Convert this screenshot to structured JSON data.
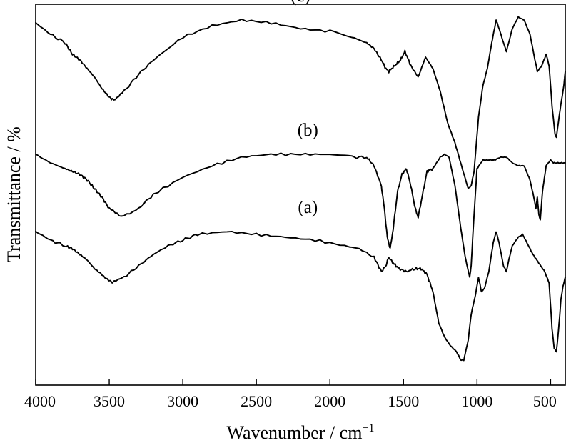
{
  "chart_data": {
    "type": "line",
    "xlabel": "Wavenumber / cm",
    "xlabel_superscript": "−1",
    "ylabel": "Transmittance / %",
    "xlim": [
      4000,
      400
    ],
    "x_reversed": true,
    "x_ticks": [
      4000,
      3500,
      3000,
      2500,
      2000,
      1500,
      1000,
      500
    ],
    "y_ticks_shown": false,
    "grid": false,
    "y_units": "relative transmittance (offset stacked, 0–100 vertical scale, 0 = top of plot)",
    "series": [
      {
        "name": "(c)",
        "points": [
          [
            4000,
            3
          ],
          [
            3900,
            7
          ],
          [
            3800,
            10
          ],
          [
            3750,
            14
          ],
          [
            3700,
            16
          ],
          [
            3650,
            19
          ],
          [
            3600,
            22
          ],
          [
            3550,
            26
          ],
          [
            3500,
            29
          ],
          [
            3470,
            30
          ],
          [
            3400,
            27
          ],
          [
            3300,
            21
          ],
          [
            3200,
            16
          ],
          [
            3000,
            8
          ],
          [
            2800,
            4
          ],
          [
            2600,
            2
          ],
          [
            2400,
            3
          ],
          [
            2200,
            5
          ],
          [
            2000,
            6
          ],
          [
            1850,
            8
          ],
          [
            1750,
            10
          ],
          [
            1700,
            12
          ],
          [
            1650,
            16
          ],
          [
            1620,
            19
          ],
          [
            1600,
            20
          ],
          [
            1560,
            18
          ],
          [
            1520,
            16
          ],
          [
            1490,
            13
          ],
          [
            1450,
            18
          ],
          [
            1400,
            22
          ],
          [
            1350,
            15
          ],
          [
            1300,
            19
          ],
          [
            1250,
            27
          ],
          [
            1200,
            38
          ],
          [
            1150,
            45
          ],
          [
            1100,
            54
          ],
          [
            1060,
            61
          ],
          [
            1040,
            60
          ],
          [
            1020,
            55
          ],
          [
            990,
            36
          ],
          [
            960,
            25
          ],
          [
            930,
            19
          ],
          [
            900,
            10
          ],
          [
            870,
            2
          ],
          [
            850,
            5
          ],
          [
            820,
            10
          ],
          [
            800,
            13
          ],
          [
            760,
            5
          ],
          [
            720,
            1
          ],
          [
            680,
            2
          ],
          [
            640,
            7
          ],
          [
            610,
            15
          ],
          [
            590,
            20
          ],
          [
            560,
            18
          ],
          [
            530,
            14
          ],
          [
            510,
            18
          ],
          [
            490,
            32
          ],
          [
            470,
            42
          ],
          [
            460,
            43
          ],
          [
            440,
            35
          ],
          [
            410,
            25
          ],
          [
            400,
            20
          ]
        ]
      },
      {
        "name": "(b)",
        "points": [
          [
            4000,
            49
          ],
          [
            3900,
            52
          ],
          [
            3800,
            54
          ],
          [
            3750,
            55
          ],
          [
            3700,
            56
          ],
          [
            3650,
            58
          ],
          [
            3600,
            61
          ],
          [
            3550,
            64
          ],
          [
            3500,
            68
          ],
          [
            3420,
            71
          ],
          [
            3300,
            68
          ],
          [
            3200,
            63
          ],
          [
            3000,
            57
          ],
          [
            2800,
            53
          ],
          [
            2600,
            50
          ],
          [
            2400,
            49
          ],
          [
            2200,
            49
          ],
          [
            2000,
            49
          ],
          [
            1850,
            50
          ],
          [
            1750,
            50
          ],
          [
            1700,
            53
          ],
          [
            1650,
            60
          ],
          [
            1630,
            68
          ],
          [
            1610,
            78
          ],
          [
            1590,
            82
          ],
          [
            1570,
            75
          ],
          [
            1540,
            62
          ],
          [
            1510,
            56
          ],
          [
            1480,
            54
          ],
          [
            1450,
            60
          ],
          [
            1420,
            68
          ],
          [
            1400,
            71
          ],
          [
            1370,
            63
          ],
          [
            1340,
            55
          ],
          [
            1300,
            54
          ],
          [
            1250,
            50
          ],
          [
            1220,
            49
          ],
          [
            1190,
            50
          ],
          [
            1150,
            60
          ],
          [
            1110,
            75
          ],
          [
            1080,
            85
          ],
          [
            1050,
            92
          ],
          [
            1040,
            88
          ],
          [
            1020,
            70
          ],
          [
            1000,
            54
          ],
          [
            960,
            51
          ],
          [
            920,
            51
          ],
          [
            880,
            51
          ],
          [
            840,
            50
          ],
          [
            800,
            50
          ],
          [
            760,
            52
          ],
          [
            720,
            53
          ],
          [
            680,
            53
          ],
          [
            640,
            58
          ],
          [
            610,
            65
          ],
          [
            600,
            68
          ],
          [
            590,
            64
          ],
          [
            580,
            70
          ],
          [
            570,
            72
          ],
          [
            555,
            62
          ],
          [
            530,
            53
          ],
          [
            500,
            51
          ],
          [
            480,
            52
          ],
          [
            450,
            52
          ],
          [
            420,
            52
          ],
          [
            400,
            52
          ]
        ]
      },
      {
        "name": "(a)",
        "points": [
          [
            4000,
            76
          ],
          [
            3900,
            79
          ],
          [
            3800,
            81
          ],
          [
            3750,
            82
          ],
          [
            3700,
            84
          ],
          [
            3650,
            86
          ],
          [
            3600,
            89
          ],
          [
            3550,
            91
          ],
          [
            3480,
            94
          ],
          [
            3400,
            92
          ],
          [
            3300,
            88
          ],
          [
            3200,
            84
          ],
          [
            3100,
            81
          ],
          [
            3000,
            79
          ],
          [
            2900,
            77
          ],
          [
            2700,
            76
          ],
          [
            2500,
            77
          ],
          [
            2300,
            78
          ],
          [
            2100,
            79
          ],
          [
            1900,
            81
          ],
          [
            1800,
            82
          ],
          [
            1700,
            85
          ],
          [
            1650,
            90
          ],
          [
            1620,
            88
          ],
          [
            1600,
            85
          ],
          [
            1570,
            87
          ],
          [
            1530,
            89
          ],
          [
            1480,
            90
          ],
          [
            1420,
            89
          ],
          [
            1380,
            89
          ],
          [
            1340,
            91
          ],
          [
            1300,
            97
          ],
          [
            1260,
            108
          ],
          [
            1220,
            113
          ],
          [
            1180,
            116
          ],
          [
            1140,
            118
          ],
          [
            1110,
            121
          ],
          [
            1090,
            121
          ],
          [
            1060,
            114
          ],
          [
            1040,
            105
          ],
          [
            1010,
            98
          ],
          [
            990,
            92
          ],
          [
            970,
            97
          ],
          [
            950,
            96
          ],
          [
            920,
            90
          ],
          [
            890,
            80
          ],
          [
            870,
            76
          ],
          [
            850,
            80
          ],
          [
            820,
            88
          ],
          [
            800,
            90
          ],
          [
            780,
            85
          ],
          [
            760,
            81
          ],
          [
            720,
            78
          ],
          [
            690,
            77
          ],
          [
            660,
            80
          ],
          [
            620,
            84
          ],
          [
            580,
            87
          ],
          [
            540,
            90
          ],
          [
            510,
            94
          ],
          [
            490,
            110
          ],
          [
            475,
            117
          ],
          [
            460,
            118
          ],
          [
            445,
            110
          ],
          [
            430,
            100
          ],
          [
            415,
            95
          ],
          [
            400,
            92
          ]
        ]
      }
    ],
    "series_label_positions": {
      "(c)": [
        2200,
        -4
      ],
      "(b)": [
        2150,
        43
      ],
      "(a)": [
        2150,
        70
      ]
    }
  }
}
